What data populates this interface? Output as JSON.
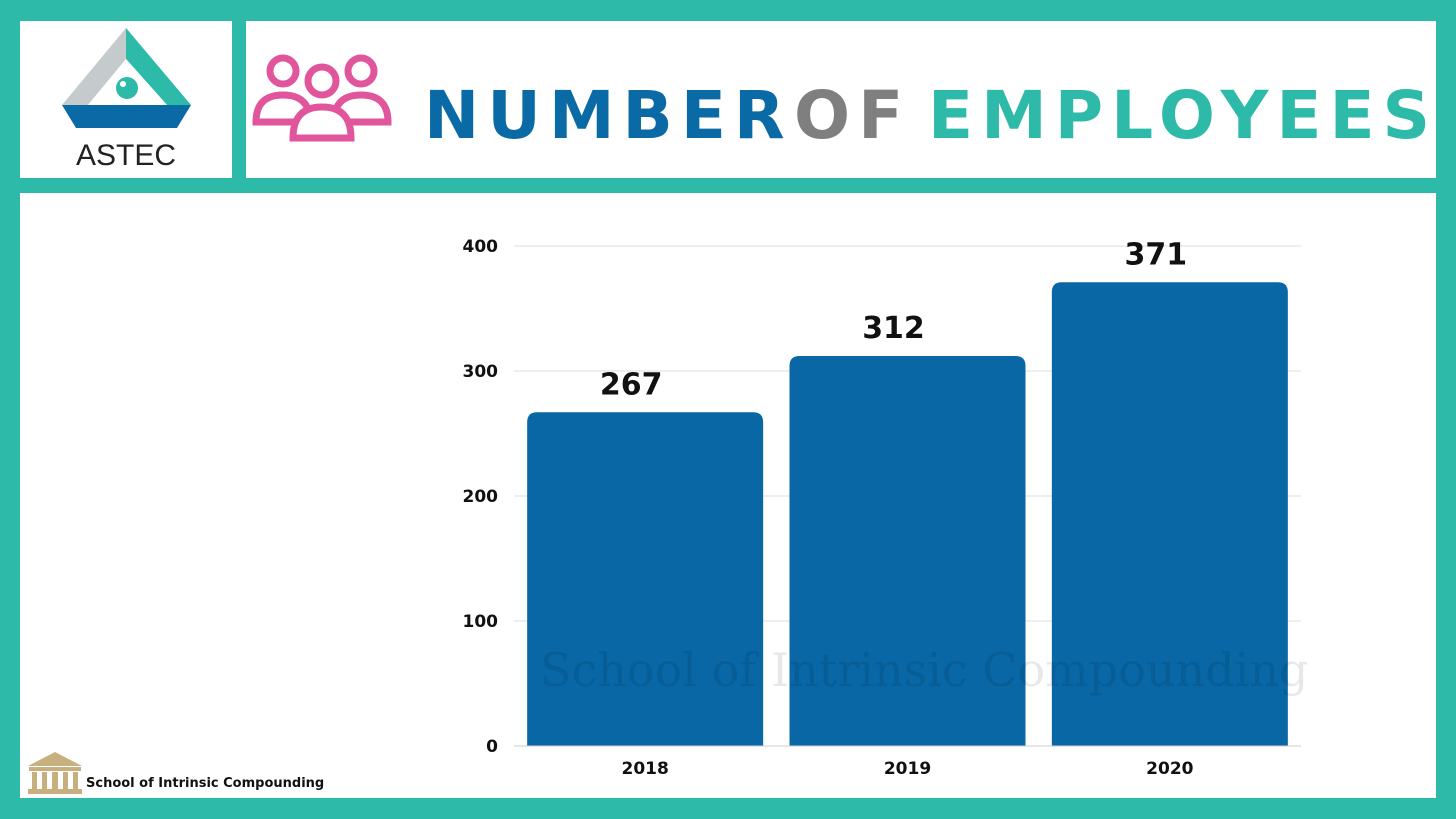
{
  "brand": {
    "logo_text": "ASTEC"
  },
  "title": {
    "word1": "NUMBER",
    "word2": "OF",
    "word3": "EMPLOYEES",
    "color1": "#0a6aa6",
    "color2": "#7f7f7f",
    "color3": "#2dbaa9",
    "icon": "people-group-icon",
    "icon_color": "#e0559b"
  },
  "colors": {
    "frame": "#2dbaa9",
    "bar": "#0867a4",
    "grid": "#dddddd"
  },
  "chart_data": {
    "type": "bar",
    "categories": [
      "2018",
      "2019",
      "2020"
    ],
    "values": [
      267,
      312,
      371
    ],
    "data_labels": [
      "267",
      "312",
      "371"
    ],
    "ylim": [
      0,
      400
    ],
    "yticks": [
      0,
      100,
      200,
      300,
      400
    ],
    "grid": true,
    "legend": "none"
  },
  "watermark": "School of Intrinsic Compounding",
  "footer": {
    "text": "School of Intrinsic Compounding",
    "icon": "school-building-icon"
  }
}
